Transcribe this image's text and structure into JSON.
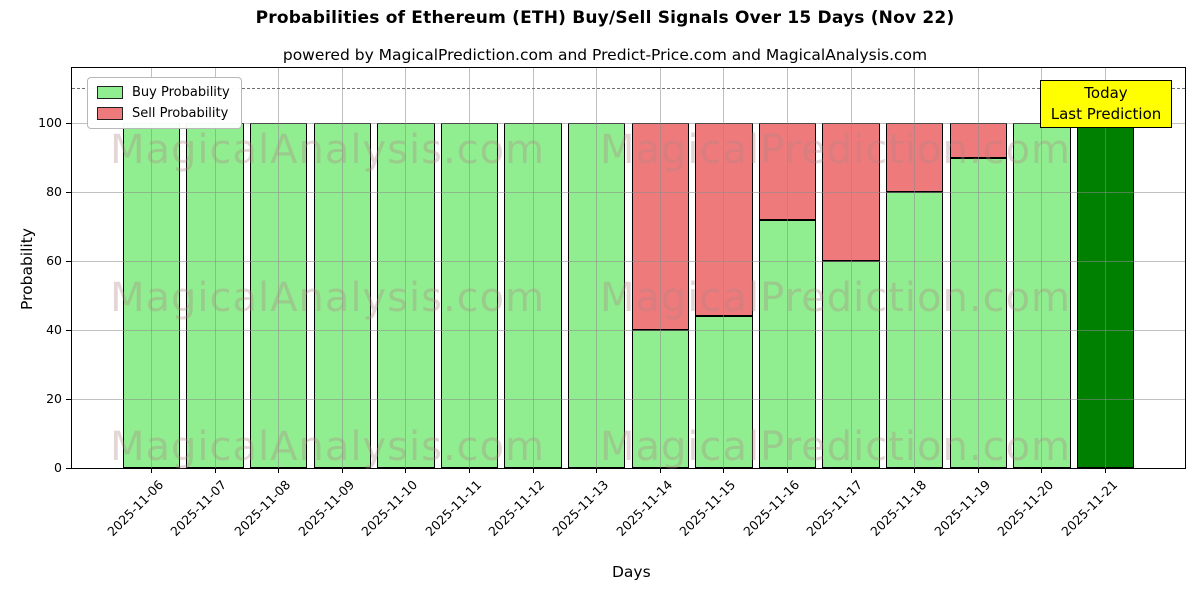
{
  "title": "Probabilities of Ethereum (ETH) Buy/Sell Signals Over 15 Days (Nov 22)",
  "subtitle": "powered by MagicalPrediction.com and Predict-Price.com and MagicalAnalysis.com",
  "legend": {
    "buy_label": "Buy Probability",
    "sell_label": "Sell Probability"
  },
  "annotation": {
    "line1": "Today",
    "line2": "Last Prediction"
  },
  "axes": {
    "ylabel": "Probability",
    "xlabel": "Days",
    "yticks": [
      0,
      20,
      40,
      60,
      80,
      100
    ],
    "ylim": [
      0,
      116
    ],
    "dashed_line_y": 110,
    "grid": true
  },
  "watermarks": {
    "left": "MagicalAnalysis.com",
    "right": "MagicalPrediction.com"
  },
  "colors": {
    "buy": "#90ee90",
    "sell": "#ee7a7c",
    "today_bar": "#008000",
    "annotation_bg": "#ffff00",
    "bar_edge": "#000000",
    "grid": "#8c8c8c"
  },
  "chart_data": {
    "type": "bar",
    "stacked": true,
    "title": "Probabilities of Ethereum (ETH) Buy/Sell Signals Over 15 Days (Nov 22)",
    "xlabel": "Days",
    "ylabel": "Probability",
    "ylim": [
      0,
      116
    ],
    "grid": true,
    "legend_position": "upper left",
    "categories": [
      "2025-11-06",
      "2025-11-07",
      "2025-11-08",
      "2025-11-09",
      "2025-11-10",
      "2025-11-11",
      "2025-11-12",
      "2025-11-13",
      "2025-11-14",
      "2025-11-15",
      "2025-11-16",
      "2025-11-17",
      "2025-11-18",
      "2025-11-19",
      "2025-11-20",
      "2025-11-21"
    ],
    "series": [
      {
        "name": "Buy Probability",
        "color": "#90ee90",
        "values": [
          100,
          100,
          100,
          100,
          100,
          100,
          100,
          100,
          40,
          44,
          72,
          60,
          80,
          90,
          100,
          100
        ]
      },
      {
        "name": "Sell Probability",
        "color": "#ee7a7c",
        "values": [
          0,
          0,
          0,
          0,
          0,
          0,
          0,
          0,
          60,
          56,
          28,
          40,
          20,
          10,
          0,
          0
        ]
      }
    ],
    "today_index": 15,
    "today_annotation": "Today Last Prediction",
    "reference_line": {
      "y": 110,
      "style": "dashed",
      "color": "gray"
    }
  }
}
